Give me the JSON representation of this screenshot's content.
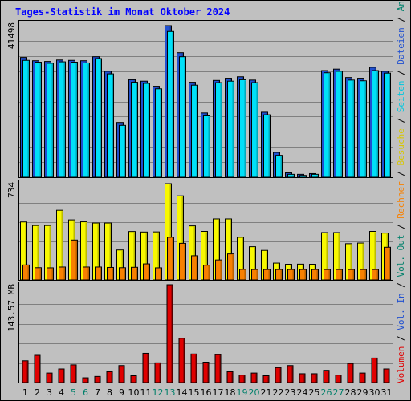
{
  "chart_data": {
    "type": "bar",
    "title": "Tages-Statistik im Monat Oktober 2024",
    "categories": [
      "1",
      "2",
      "3",
      "4",
      "5",
      "6",
      "7",
      "8",
      "9",
      "10",
      "11",
      "12",
      "13",
      "14",
      "15",
      "16",
      "17",
      "18",
      "19",
      "20",
      "21",
      "22",
      "23",
      "24",
      "25",
      "26",
      "27",
      "28",
      "29",
      "30",
      "31"
    ],
    "weekend_days": [
      "5",
      "6",
      "12",
      "13",
      "19",
      "20",
      "26",
      "27"
    ],
    "panels": [
      {
        "key": "top",
        "max_label": "41498",
        "ylim": [
          0,
          41498
        ],
        "series": [
          {
            "name": "Anfragen",
            "color": "#00806b",
            "values": [
              null,
              null,
              null,
              null,
              null,
              null,
              null,
              null,
              null,
              null,
              null,
              null,
              null,
              null,
              null,
              null,
              null,
              null,
              null,
              null,
              null,
              null,
              null,
              null,
              null,
              null,
              null,
              null,
              null,
              null,
              null
            ]
          },
          {
            "name": "Dateien",
            "color": "#2050d0",
            "values": [
              32800,
              31900,
              31700,
              32100,
              32000,
              31900,
              33000,
              29000,
              15000,
              26700,
              26300,
              24900,
              41498,
              34100,
              26000,
              17600,
              26500,
              27100,
              27500,
              26600,
              17800,
              6800,
              1200,
              800,
              1000,
              29200,
              29600,
              27300,
              27100,
              30100,
              29000
            ]
          },
          {
            "name": "Seiten",
            "color": "#00e0f8",
            "values": [
              32000,
              31500,
              31200,
              31600,
              31500,
              31300,
              32500,
              28300,
              14200,
              26000,
              25700,
              24200,
              39900,
              33000,
              25200,
              16800,
              25900,
              26300,
              26700,
              25900,
              17100,
              6000,
              800,
              500,
              800,
              28600,
              29000,
              26600,
              26400,
              29200,
              28500
            ]
          }
        ]
      },
      {
        "key": "mid",
        "max_label": "734",
        "ylim": [
          0,
          734
        ],
        "series": [
          {
            "name": "Besuche",
            "color": "#f8f800",
            "values": [
              442,
              415,
              415,
              531,
              458,
              443,
              434,
              434,
              228,
              369,
              365,
              366,
              734,
              641,
              412,
              370,
              465,
              465,
              325,
              253,
              225,
              128,
              119,
              120,
              119,
              361,
              361,
              276,
              281,
              370,
              357
            ]
          },
          {
            "name": "Rechner",
            "color": "#f88000",
            "values": [
              114,
              93,
              92,
              98,
              304,
              98,
              98,
              95,
              93,
              96,
              122,
              92,
              325,
              279,
              184,
              112,
              152,
              198,
              80,
              79,
              79,
              79,
              79,
              79,
              79,
              79,
              79,
              79,
              79,
              79,
              249
            ]
          }
        ]
      },
      {
        "key": "bot",
        "max_label": "143.57 MB",
        "ylim": [
          0,
          143.57
        ],
        "series": [
          {
            "name": "Volumen",
            "color": "#e00000",
            "values": [
              32,
              40,
              14,
              20,
              26,
              7,
              9,
              16,
              25,
              10,
              43,
              29,
              143.57,
              65,
              42,
              30,
              41,
              16,
              11,
              14,
              10,
              22,
              25,
              13,
              13,
              18,
              11,
              28,
              14,
              36,
              20
            ]
          }
        ]
      }
    ],
    "side_legend": [
      {
        "text": "Volumen",
        "color": "#e00000"
      },
      {
        "text": " / ",
        "color": "#000000"
      },
      {
        "text": "Vol. In",
        "color": "#2050d0"
      },
      {
        "text": " / ",
        "color": "#000000"
      },
      {
        "text": "Vol. Out",
        "color": "#00806b"
      },
      {
        "text": " / ",
        "color": "#000000"
      },
      {
        "text": "Rechner",
        "color": "#f88000"
      },
      {
        "text": " / ",
        "color": "#000000"
      },
      {
        "text": "Besuche",
        "color": "#d8c800"
      },
      {
        "text": " / ",
        "color": "#000000"
      },
      {
        "text": "Seiten",
        "color": "#00c8e0"
      },
      {
        "text": " / ",
        "color": "#000000"
      },
      {
        "text": "Dateien",
        "color": "#2050d0"
      },
      {
        "text": " / ",
        "color": "#000000"
      },
      {
        "text": "Anfragen",
        "color": "#00806b"
      }
    ],
    "colors": {
      "background": "#c0c0c0",
      "title": "#0000ff",
      "weekend_label": "#00806b",
      "weekday_label": "#000000",
      "gridline": "#808080"
    },
    "grid": true
  }
}
